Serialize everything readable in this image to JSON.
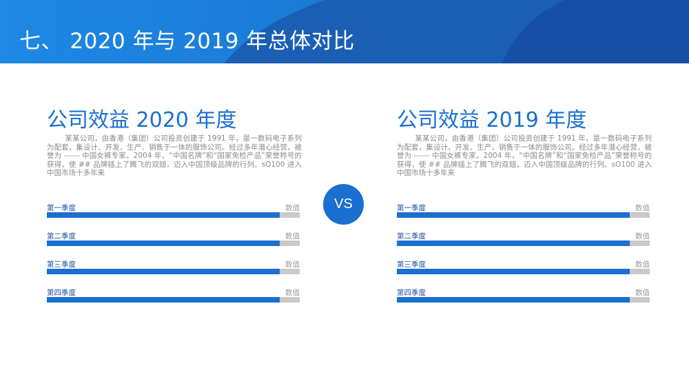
{
  "header": {
    "title": "七、 2020 年与 2019 年总体对比"
  },
  "vs_label": "VS",
  "colors": {
    "primary": "#1a6fd1",
    "header_blue": "#1565c0",
    "track_gray": "#c9c9c9",
    "text_gray": "#8a8a8a"
  },
  "panels": [
    {
      "title": "公司效益 2020 年度",
      "description": "某某公司，由香港（集团）公司投资创建于 1991 年，是一数码电子系列为配套，集设计、开发、生产、销售于一体的服饰公司。经过多年潜心经营，被誉为 ------ 中国女裤专家。2004 年，“中国名牌”和“国家免检产品”荣誉称号的获得，使 ## 品牌插上了腾飞的双翅，迈入中国顶级品牌的行列。sO100 进入中国市场十多年来",
      "bars": [
        {
          "label": "第一季度",
          "value_label": "数值",
          "fill": 0.92
        },
        {
          "label": "第二季度",
          "value_label": "数值",
          "fill": 0.92
        },
        {
          "label": "第三季度",
          "value_label": "数值",
          "fill": 0.92
        },
        {
          "label": "第四季度",
          "value_label": "数值",
          "fill": 0.92
        }
      ]
    },
    {
      "title": "公司效益 2019 年度",
      "description": "某某公司，由香港（集团）公司投资创建于 1991 年，是一数码电子系列为配套，集设计、开发、生产、销售于一体的服饰公司。经过多年潜心经营，被誉为 ------ 中国女裤专家。2004 年，“中国名牌”和“国家免检产品”荣誉称号的获得，使 ## 品牌插上了腾飞的双翅，迈入中国顶级品牌的行列。sO100 进入中国市场十多年来",
      "bars": [
        {
          "label": "第一季度",
          "value_label": "数值",
          "fill": 0.92
        },
        {
          "label": "第二季度",
          "value_label": "数值",
          "fill": 0.92
        },
        {
          "label": "第三季度",
          "value_label": "数值",
          "fill": 0.92
        },
        {
          "label": "第四季度",
          "value_label": "数值",
          "fill": 0.92
        }
      ]
    }
  ]
}
